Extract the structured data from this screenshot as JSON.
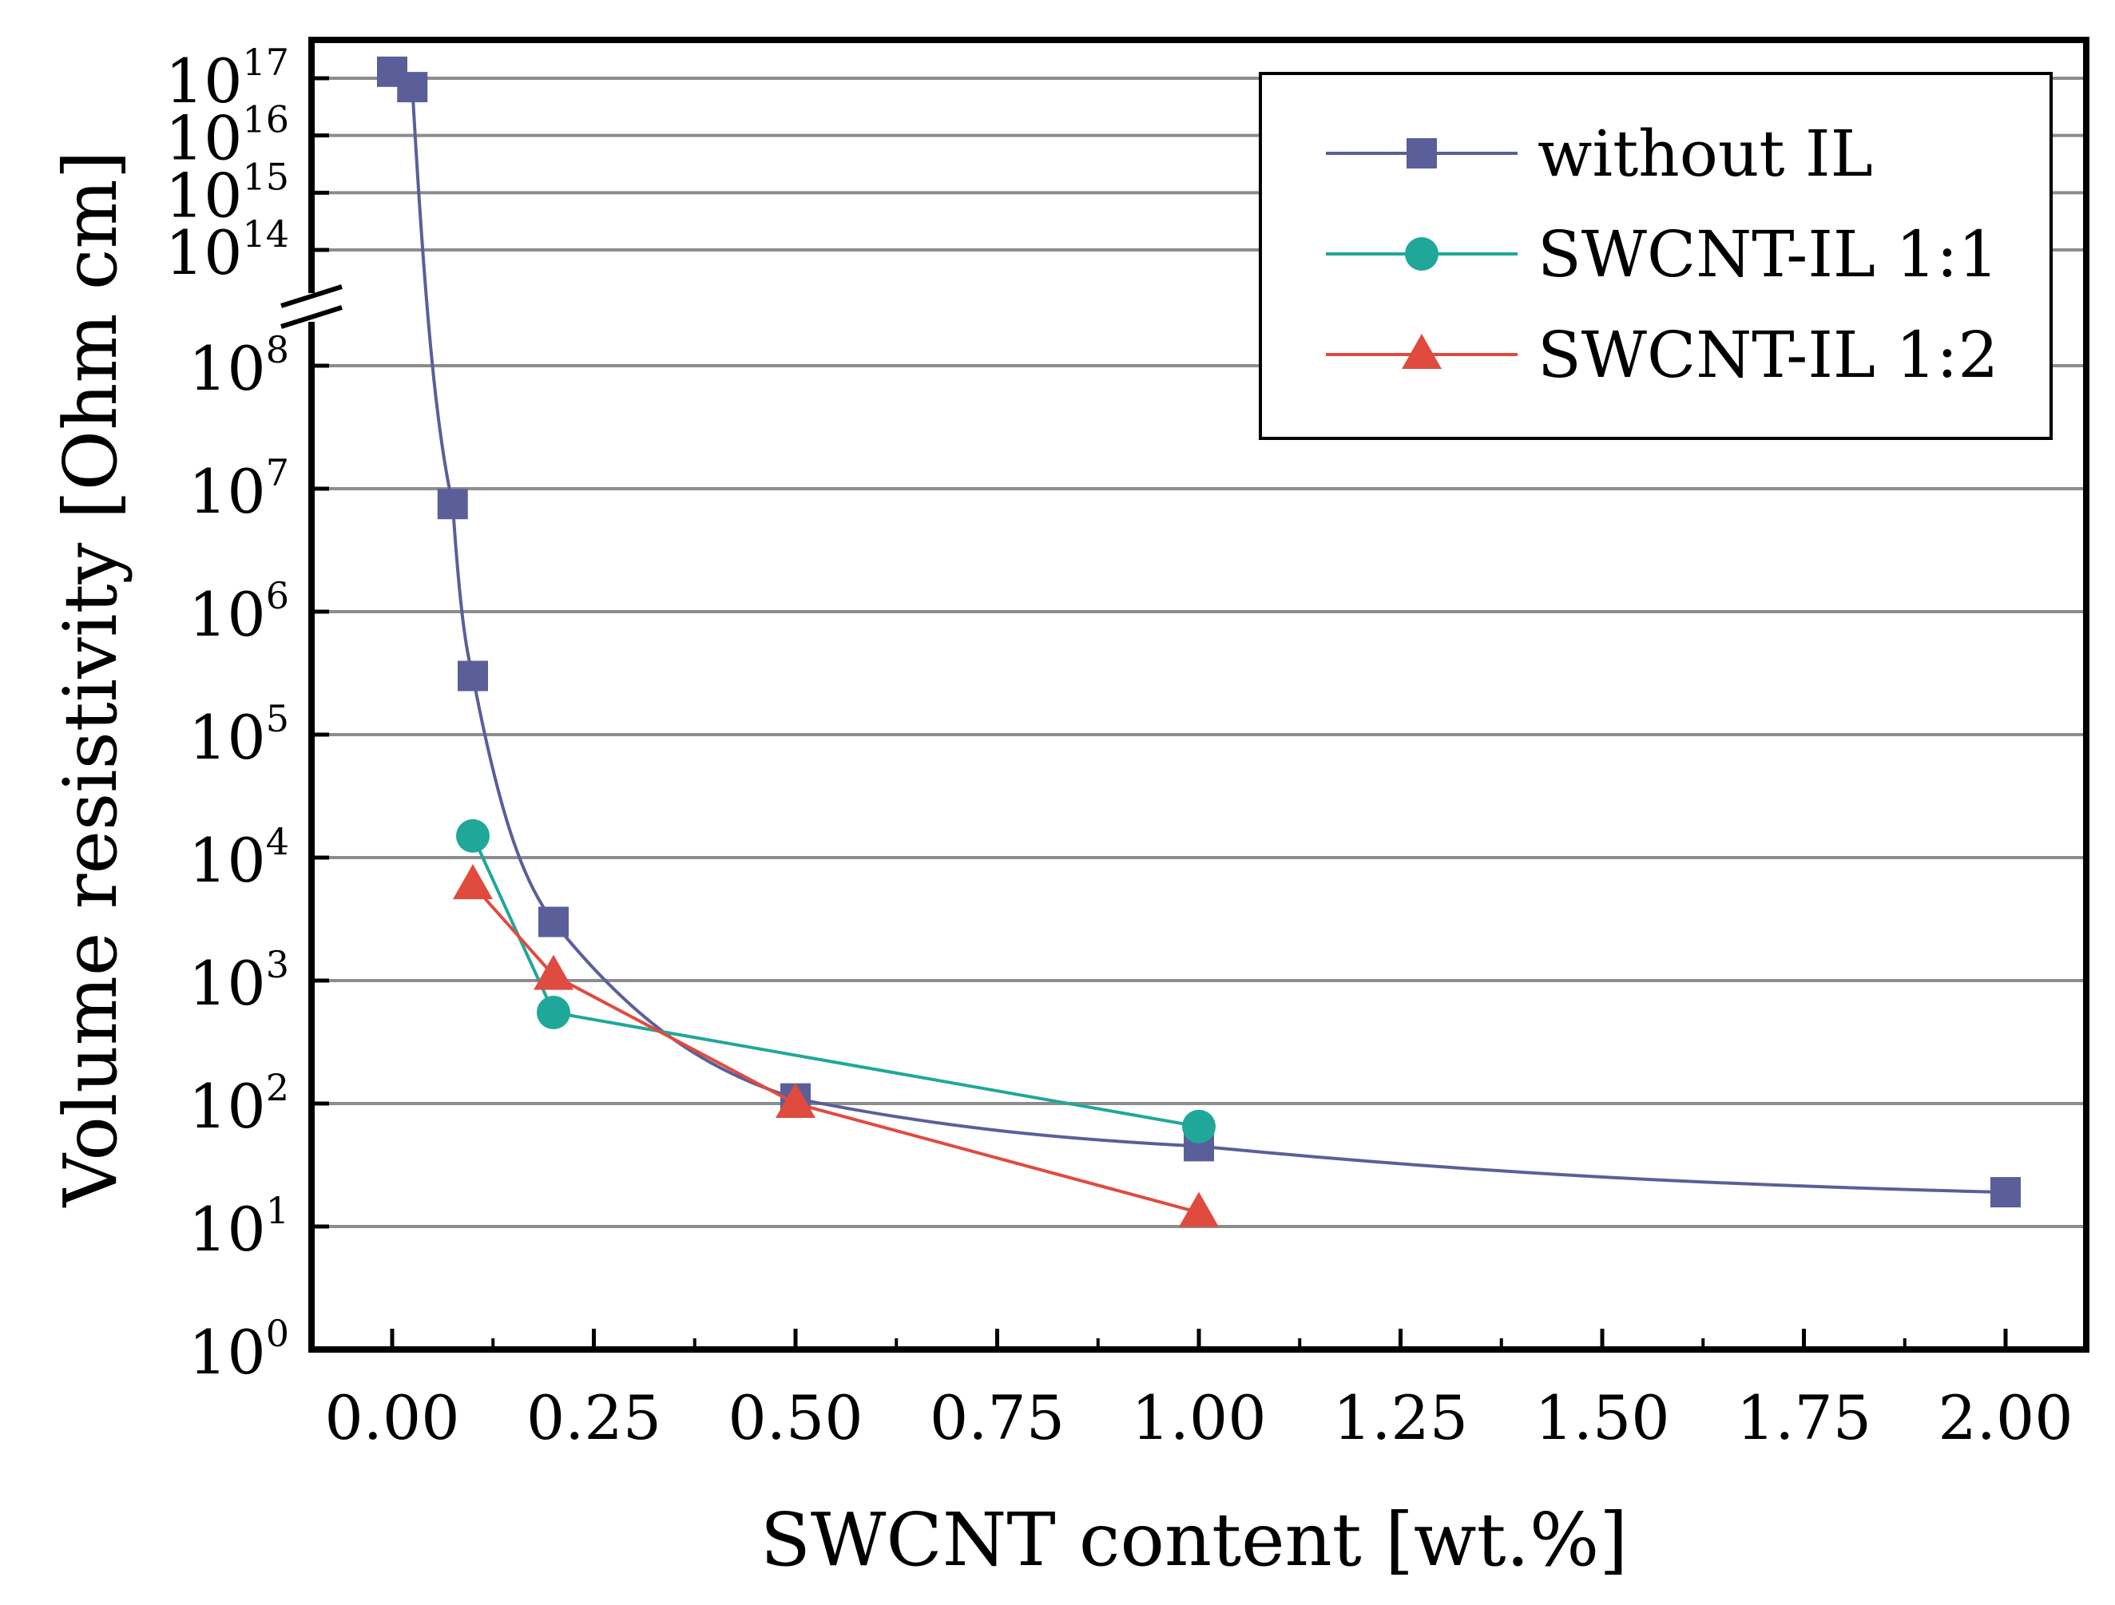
{
  "chart_data": {
    "type": "line",
    "xlabel": "SWCNT content [wt.%]",
    "ylabel": "Volume resistivity [Ohm cm]",
    "xlim": [
      -0.1,
      2.1
    ],
    "x_ticks": [
      "0.00",
      "0.25",
      "0.50",
      "0.75",
      "1.00",
      "1.25",
      "1.50",
      "1.75",
      "2.00"
    ],
    "y_scale": "log, broken axis",
    "y_ticks_lower": [
      "10^0",
      "10^1",
      "10^2",
      "10^3",
      "10^4",
      "10^5",
      "10^6",
      "10^7",
      "10^8"
    ],
    "y_ticks_upper": [
      "10^14",
      "10^15",
      "10^16",
      "10^17"
    ],
    "y_tick_label_parts": {
      "base": "10",
      "exponents_lower": [
        "0",
        "1",
        "2",
        "3",
        "4",
        "5",
        "6",
        "7",
        "8"
      ],
      "exponents_upper": [
        "14",
        "15",
        "16",
        "17"
      ]
    },
    "grid": "horizontal",
    "legend_position": "top-right",
    "series": [
      {
        "name": "without IL",
        "color": "#5a5f99",
        "marker": "square",
        "x": [
          0.0,
          0.025,
          0.075,
          0.1,
          0.2,
          0.5,
          1.0,
          2.0
        ],
        "y": [
          1.3e+17,
          7e+16,
          7500000.0,
          300000.0,
          3000.0,
          110,
          45,
          19
        ]
      },
      {
        "name": "SWCNT-IL 1:1",
        "color": "#1fa899",
        "marker": "circle",
        "x": [
          0.1,
          0.2,
          1.0
        ],
        "y": [
          15000.0,
          550,
          65
        ]
      },
      {
        "name": "SWCNT-IL 1:2",
        "color": "#e04b3f",
        "marker": "triangle",
        "x": [
          0.1,
          0.2,
          0.5,
          1.0
        ],
        "y": [
          6000,
          1100,
          100,
          13
        ]
      }
    ]
  }
}
